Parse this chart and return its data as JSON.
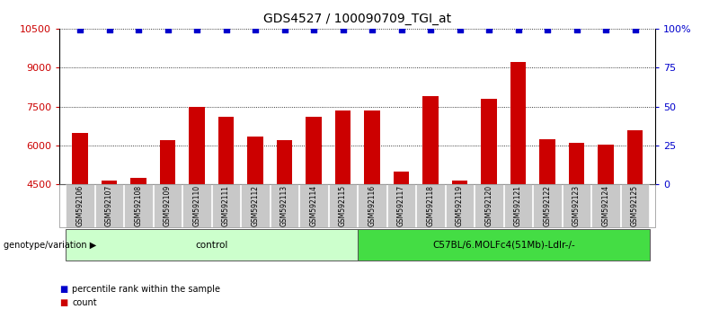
{
  "title": "GDS4527 / 100090709_TGI_at",
  "samples": [
    "GSM592106",
    "GSM592107",
    "GSM592108",
    "GSM592109",
    "GSM592110",
    "GSM592111",
    "GSM592112",
    "GSM592113",
    "GSM592114",
    "GSM592115",
    "GSM592116",
    "GSM592117",
    "GSM592118",
    "GSM592119",
    "GSM592120",
    "GSM592121",
    "GSM592122",
    "GSM592123",
    "GSM592124",
    "GSM592125"
  ],
  "counts": [
    6500,
    4650,
    4750,
    6200,
    7500,
    7100,
    6350,
    6200,
    7100,
    7350,
    7350,
    5000,
    7900,
    4650,
    7800,
    9200,
    6250,
    6100,
    6050,
    6600
  ],
  "percentile_values": [
    10450,
    10450,
    10450,
    10450,
    10450,
    10450,
    10450,
    10450,
    10450,
    10450,
    10450,
    10450,
    10450,
    10450,
    10450,
    10450,
    10450,
    10450,
    10450,
    10450
  ],
  "groups": [
    {
      "label": "control",
      "start": 0,
      "end": 10,
      "color": "#ccffcc"
    },
    {
      "label": "C57BL/6.MOLFc4(51Mb)-Ldlr-/-",
      "start": 10,
      "end": 20,
      "color": "#44dd44"
    }
  ],
  "ylim_left": [
    4500,
    10500
  ],
  "ylim_right": [
    0,
    100
  ],
  "yticks_left": [
    4500,
    6000,
    7500,
    9000,
    10500
  ],
  "yticks_right": [
    0,
    25,
    50,
    75,
    100
  ],
  "bar_color": "#CC0000",
  "dot_color": "#0000CC",
  "bar_bottom": 4500,
  "background_color": "#ffffff",
  "grid_color": "#000000",
  "tick_color_left": "#CC0000",
  "tick_color_right": "#0000CC",
  "genotype_label": "genotype/variation",
  "legend_count_color": "#CC0000",
  "legend_pct_color": "#0000CC",
  "xticklabel_bg": "#c8c8c8"
}
